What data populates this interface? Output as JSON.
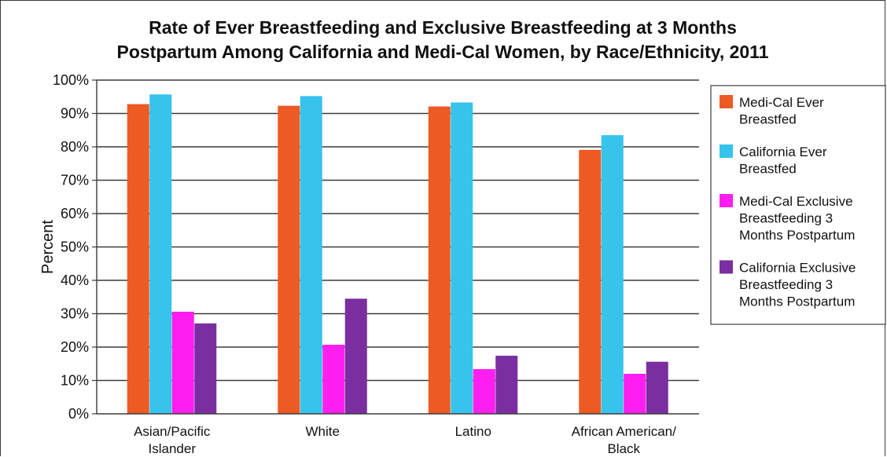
{
  "chart_data": {
    "type": "bar",
    "title_lines": [
      "Rate of Ever Breastfeeding and Exclusive Breastfeeding at 3 Months",
      "Postpartum Among California and Medi-Cal Women, by Race/Ethnicity, 2011"
    ],
    "xlabel": "",
    "ylabel": "Percent",
    "ylim": [
      0,
      100
    ],
    "yticks": [
      "0%",
      "10%",
      "20%",
      "30%",
      "40%",
      "50%",
      "60%",
      "70%",
      "80%",
      "90%",
      "100%"
    ],
    "grid": true,
    "legend_position": "right",
    "categories": [
      [
        "Asian/Pacific",
        "Islander"
      ],
      [
        "White"
      ],
      [
        "Latino"
      ],
      [
        "African American/",
        "Black"
      ]
    ],
    "series": [
      {
        "name_lines": [
          "Medi-Cal Ever",
          "Breastfed"
        ],
        "color": "#EE5A24",
        "values": [
          92.8,
          92.3,
          92.1,
          79.1
        ]
      },
      {
        "name_lines": [
          "California Ever",
          "Breastfed"
        ],
        "color": "#36C3EC",
        "values": [
          95.7,
          95.2,
          93.3,
          83.5
        ]
      },
      {
        "name_lines": [
          "Medi-Cal Exclusive",
          "Breastfeeding 3",
          "Months Postpartum"
        ],
        "color": "#FF1EF0",
        "values": [
          30.6,
          20.7,
          13.4,
          12.0
        ]
      },
      {
        "name_lines": [
          "California Exclusive",
          "Breastfeeding 3",
          "Months Postpartum"
        ],
        "color": "#7A2EA0",
        "values": [
          27.1,
          34.5,
          17.4,
          15.6
        ]
      }
    ]
  }
}
